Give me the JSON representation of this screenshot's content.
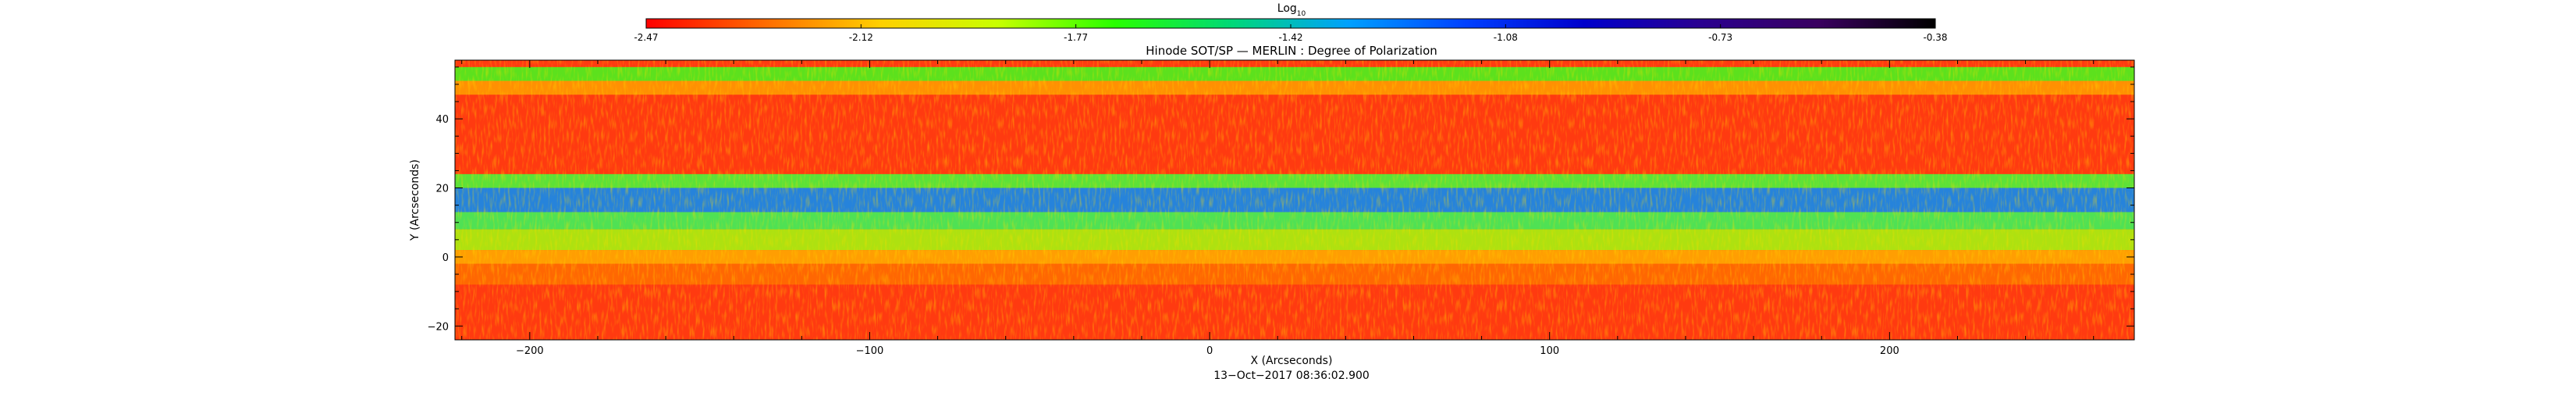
{
  "colorbar": {
    "label_main": "Log",
    "label_sub": "10",
    "ticks": [
      "-2.47",
      "-2.12",
      "-1.77",
      "-1.42",
      "-1.08",
      "-0.73",
      "-0.38"
    ],
    "range": [
      -2.47,
      -0.38
    ],
    "colormap": [
      "#ff0000",
      "#ff6a00",
      "#ffd000",
      "#c8ff00",
      "#28ff00",
      "#00d878",
      "#00a0ff",
      "#0040ff",
      "#0000cc",
      "#2a0090",
      "#3a0060",
      "#000000"
    ]
  },
  "chart_data": {
    "type": "heatmap",
    "title": "Hinode SOT/SP — MERLIN : Degree of Polarization",
    "xlabel": "X (Arcseconds)",
    "ylabel": "Y (Arcseconds)",
    "xlim": [
      -222,
      272
    ],
    "ylim": [
      -24,
      57
    ],
    "xticks": [
      -200,
      -100,
      0,
      100,
      200
    ],
    "xtick_labels": [
      "−200",
      "−100",
      "0",
      "100",
      "200"
    ],
    "yticks": [
      -20,
      0,
      20,
      40
    ],
    "ytick_labels": [
      "−20",
      "0",
      "20",
      "40"
    ],
    "value_unit": "log10 degree of polarization",
    "background_color": "#ff3a10",
    "bands": [
      {
        "y_range": [
          51,
          55
        ],
        "color": "#40ff20"
      },
      {
        "y_range": [
          47,
          51
        ],
        "color": "#ffa000"
      },
      {
        "y_range": [
          20,
          24
        ],
        "color": "#40ff40"
      },
      {
        "y_range": [
          13,
          20
        ],
        "color": "#0090ff"
      },
      {
        "y_range": [
          8,
          13
        ],
        "color": "#30ff60"
      },
      {
        "y_range": [
          2,
          8
        ],
        "color": "#a0ff10"
      },
      {
        "y_range": [
          -2,
          2
        ],
        "color": "#ffb000"
      },
      {
        "y_range": [
          -8,
          -2
        ],
        "color": "#ff7000"
      }
    ],
    "grid": false,
    "legend": "none"
  },
  "footer": {
    "date": "13−Oct−2017 08:36:02.900"
  }
}
